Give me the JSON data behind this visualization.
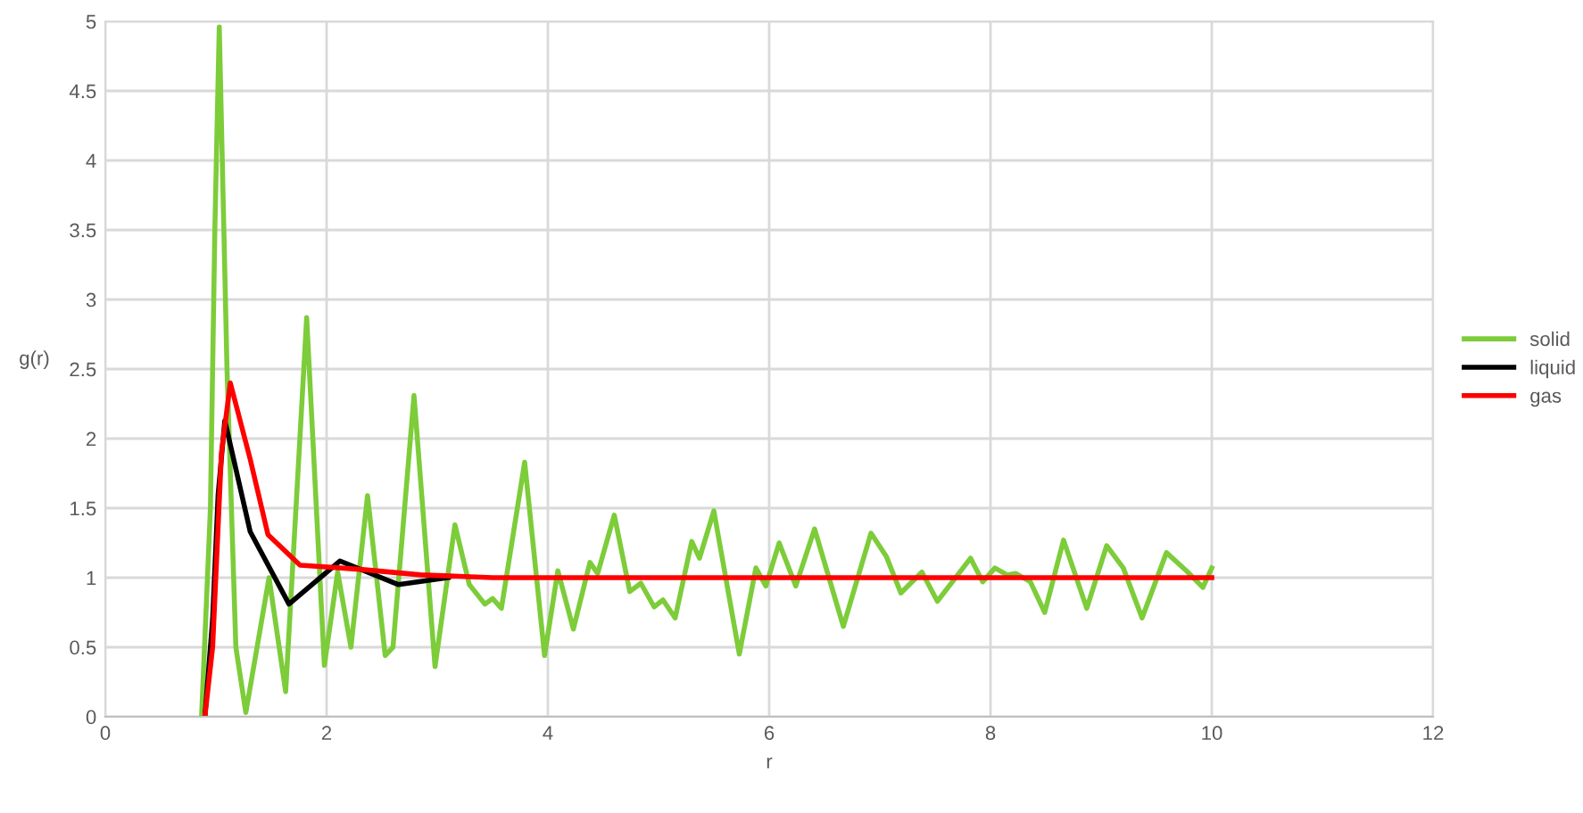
{
  "chart_data": {
    "type": "line",
    "xlabel": "r",
    "ylabel": "g(r)",
    "xlim": [
      0,
      12
    ],
    "xticks": [
      0,
      2,
      4,
      6,
      8,
      10,
      12
    ],
    "ylim": [
      0,
      5
    ],
    "yticks": [
      0,
      0.5,
      1,
      1.5,
      2,
      2.5,
      3,
      3.5,
      4,
      4.5,
      5
    ],
    "grid": true,
    "legend": "right",
    "marker": "none",
    "line_style": "solid",
    "series": [
      {
        "name": "solid",
        "color": "#7dcc3a",
        "x": [
          0.87,
          0.95,
          0.99,
          1.03,
          1.1,
          1.18,
          1.27,
          1.48,
          1.63,
          1.82,
          1.98,
          2.1,
          2.22,
          2.37,
          2.53,
          2.6,
          2.79,
          2.98,
          3.16,
          3.29,
          3.43,
          3.5,
          3.58,
          3.79,
          3.97,
          4.09,
          4.23,
          4.38,
          4.45,
          4.6,
          4.74,
          4.84,
          4.96,
          5.04,
          5.15,
          5.3,
          5.37,
          5.5,
          5.73,
          5.88,
          5.97,
          6.09,
          6.24,
          6.41,
          6.67,
          6.92,
          7.06,
          7.19,
          7.38,
          7.52,
          7.82,
          7.93,
          8.04,
          8.15,
          8.23,
          8.36,
          8.49,
          8.66,
          8.87,
          9.05,
          9.2,
          9.37,
          9.59,
          9.77,
          9.92,
          10.0
        ],
        "values": [
          0,
          1.5,
          3.5,
          4.96,
          2.5,
          0.5,
          0.03,
          1.0,
          0.18,
          2.87,
          0.37,
          1.04,
          0.5,
          1.59,
          0.44,
          0.5,
          2.31,
          0.36,
          1.38,
          0.95,
          0.81,
          0.85,
          0.78,
          1.83,
          0.44,
          1.05,
          0.63,
          1.11,
          1.03,
          1.45,
          0.9,
          0.96,
          0.79,
          0.84,
          0.71,
          1.26,
          1.14,
          1.48,
          0.45,
          1.07,
          0.94,
          1.25,
          0.94,
          1.35,
          0.65,
          1.32,
          1.15,
          0.89,
          1.04,
          0.83,
          1.14,
          0.97,
          1.07,
          1.02,
          1.03,
          0.97,
          0.75,
          1.27,
          0.78,
          1.23,
          1.07,
          0.71,
          1.18,
          1.05,
          0.93,
          1.07
        ]
      },
      {
        "name": "liquid",
        "color": "#000000",
        "x": [
          0.9,
          0.97,
          1.02,
          1.08,
          1.31,
          1.66,
          2.12,
          2.65,
          3.1
        ],
        "values": [
          0,
          0.7,
          1.6,
          2.13,
          1.33,
          0.81,
          1.12,
          0.95,
          1.0
        ]
      },
      {
        "name": "gas",
        "color": "#ff0000",
        "x": [
          0.9,
          0.97,
          1.05,
          1.13,
          1.31,
          1.47,
          1.76,
          2.3,
          2.85,
          3.5,
          10.0
        ],
        "values": [
          0,
          0.5,
          1.9,
          2.4,
          1.85,
          1.31,
          1.09,
          1.06,
          1.02,
          1.0,
          1.0
        ]
      }
    ]
  }
}
